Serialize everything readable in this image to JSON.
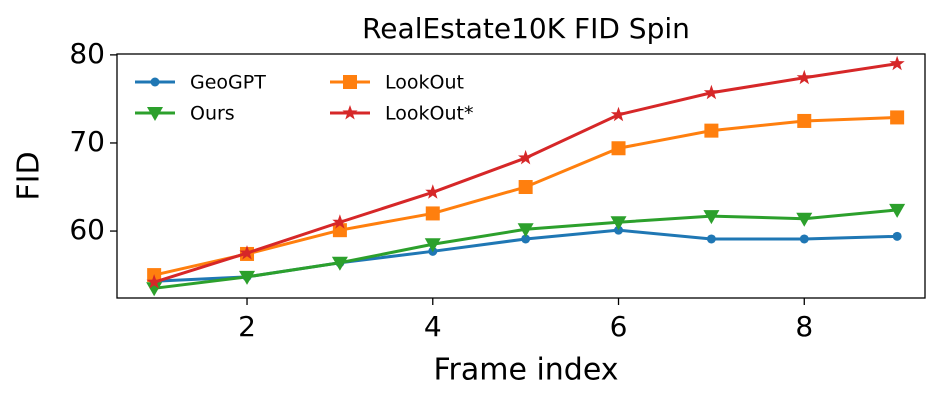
{
  "chart_data": {
    "type": "line",
    "title": "RealEstate10K FID Spin",
    "xlabel": "Frame index",
    "ylabel": "FID",
    "x": [
      1,
      2,
      3,
      4,
      5,
      6,
      7,
      8,
      9
    ],
    "series": [
      {
        "name": "GeoGPT",
        "color": "#1f77b4",
        "marker": "circle",
        "values": [
          54.3,
          54.8,
          56.4,
          57.7,
          59.1,
          60.1,
          59.1,
          59.1,
          59.4
        ]
      },
      {
        "name": "LookOut",
        "color": "#ff7f0e",
        "marker": "square",
        "values": [
          55.0,
          57.4,
          60.1,
          62.0,
          65.0,
          69.4,
          71.4,
          72.5,
          72.9
        ]
      },
      {
        "name": "Ours",
        "color": "#2ca02c",
        "marker": "triangle-down",
        "values": [
          53.5,
          54.8,
          56.4,
          58.5,
          60.2,
          61.0,
          61.7,
          61.4,
          62.4
        ]
      },
      {
        "name": "LookOut*",
        "color": "#d62728",
        "marker": "star",
        "values": [
          54.2,
          57.5,
          61.0,
          64.4,
          68.3,
          73.2,
          75.7,
          77.4,
          79.0
        ]
      }
    ],
    "xlim": [
      0.6,
      9.3
    ],
    "xticks": [
      2,
      4,
      6,
      8
    ],
    "ylim": [
      52.4,
      80.1
    ],
    "yticks": [
      60,
      70,
      80
    ],
    "legend": "upper left",
    "legend_columns": 2
  }
}
